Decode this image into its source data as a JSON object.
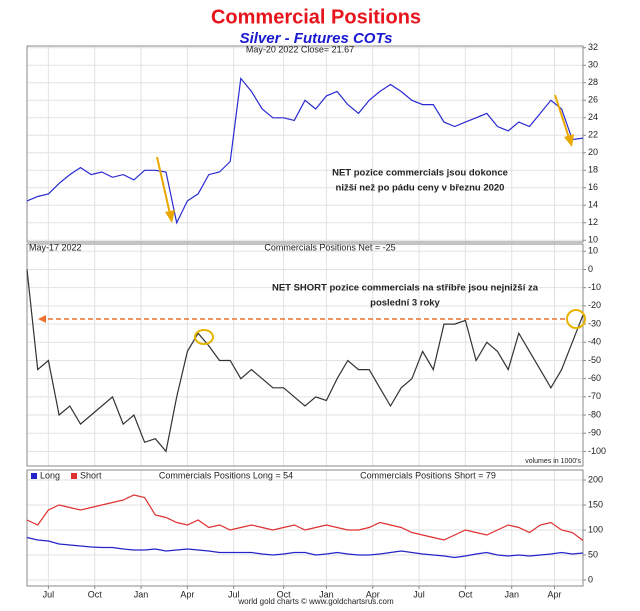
{
  "title": "Commercial Positions",
  "subtitle": "Silver - Futures COTs",
  "footer": "world gold charts © www.goldchartsrus.com",
  "chart_data": [
    {
      "type": "line",
      "header": "May-20 2022  Close= 21.67",
      "color": "#2a2ad2",
      "annotation": [
        "NET pozice commercials jsou dokonce",
        "nižší než po pádu ceny v březnu 2020"
      ],
      "x": [
        0,
        3,
        6,
        9,
        12,
        15,
        18,
        21,
        24,
        27,
        30,
        33,
        36,
        39,
        42,
        45,
        48,
        51,
        54,
        57,
        60,
        63,
        66,
        69,
        72,
        75,
        78,
        81,
        84,
        87,
        90,
        93,
        96,
        99,
        102,
        105,
        108,
        111,
        114,
        117,
        120,
        123,
        126,
        129,
        132,
        135,
        138,
        141,
        144,
        147,
        150,
        153,
        156
      ],
      "values": [
        14.5,
        15,
        15.3,
        16.5,
        17.5,
        18.3,
        17.5,
        17.8,
        17.2,
        17.5,
        16.9,
        18,
        18,
        17.8,
        12,
        14.5,
        15.3,
        17.5,
        17.8,
        19,
        28.5,
        27,
        25,
        24,
        24,
        23.7,
        26,
        25,
        26.5,
        27,
        25.5,
        24.5,
        26,
        27,
        27.8,
        27,
        26,
        25.5,
        25.5,
        23.5,
        23,
        23.5,
        24,
        24.5,
        23,
        22.5,
        23.5,
        23,
        24.5,
        26,
        25,
        21.5,
        21.67
      ],
      "xlim": [
        0,
        156
      ],
      "ylim": [
        9.8,
        32.2
      ],
      "yticks": [
        10,
        12,
        14,
        16,
        18,
        20,
        22,
        24,
        26,
        28,
        30,
        32
      ],
      "grid": true
    },
    {
      "type": "line",
      "date": "May-17 2022",
      "header": "Commercials Positions Net = -25",
      "color": "#333333",
      "annotation": [
        "NET SHORT pozice commercials na stříbře jsou nejnižší za",
        "poslední 3 roky"
      ],
      "note": "volumes in 1000's",
      "x": [
        0,
        3,
        6,
        9,
        12,
        15,
        18,
        21,
        24,
        27,
        30,
        33,
        36,
        39,
        42,
        45,
        48,
        51,
        54,
        57,
        60,
        63,
        66,
        69,
        72,
        75,
        78,
        81,
        84,
        87,
        90,
        93,
        96,
        99,
        102,
        105,
        108,
        111,
        114,
        117,
        120,
        123,
        126,
        129,
        132,
        135,
        138,
        141,
        144,
        147,
        150,
        153,
        156
      ],
      "values": [
        0,
        -55,
        -50,
        -80,
        -75,
        -85,
        -80,
        -75,
        -70,
        -85,
        -80,
        -95,
        -93,
        -100,
        -70,
        -45,
        -35,
        -42,
        -50,
        -50,
        -60,
        -55,
        -60,
        -65,
        -65,
        -70,
        -75,
        -70,
        -72,
        -60,
        -50,
        -55,
        -55,
        -65,
        -75,
        -65,
        -60,
        -45,
        -55,
        -30,
        -30,
        -28,
        -50,
        -40,
        -45,
        -55,
        -35,
        -45,
        -55,
        -65,
        -55,
        -40,
        -25
      ],
      "xlim": [
        0,
        156
      ],
      "ylim": [
        -108,
        14
      ],
      "yticks": [
        10,
        0,
        -10,
        -20,
        -30,
        -40,
        -50,
        -60,
        -70,
        -80,
        -90,
        -100
      ],
      "grid": true
    },
    {
      "type": "line",
      "header_long": "Commercials Positions Long = 54",
      "header_short": "Commercials Positions Short = 79",
      "x": [
        0,
        3,
        6,
        9,
        12,
        15,
        18,
        21,
        24,
        27,
        30,
        33,
        36,
        39,
        42,
        45,
        48,
        51,
        54,
        57,
        60,
        63,
        66,
        69,
        72,
        75,
        78,
        81,
        84,
        87,
        90,
        93,
        96,
        99,
        102,
        105,
        108,
        111,
        114,
        117,
        120,
        123,
        126,
        129,
        132,
        135,
        138,
        141,
        144,
        147,
        150,
        153,
        156
      ],
      "series": [
        {
          "name": "Long",
          "color": "#2424c8",
          "values": [
            85,
            80,
            78,
            72,
            70,
            68,
            66,
            65,
            65,
            62,
            60,
            60,
            62,
            58,
            60,
            62,
            60,
            58,
            55,
            55,
            55,
            55,
            52,
            50,
            52,
            55,
            55,
            50,
            52,
            55,
            52,
            50,
            50,
            52,
            55,
            58,
            55,
            52,
            50,
            48,
            45,
            48,
            52,
            55,
            50,
            48,
            50,
            48,
            50,
            52,
            55,
            52,
            54
          ]
        },
        {
          "name": "Short",
          "color": "#e03030",
          "values": [
            120,
            110,
            140,
            150,
            145,
            140,
            145,
            150,
            155,
            160,
            170,
            165,
            130,
            125,
            115,
            110,
            120,
            105,
            110,
            100,
            105,
            110,
            105,
            100,
            105,
            110,
            100,
            105,
            110,
            105,
            100,
            100,
            105,
            115,
            110,
            105,
            95,
            90,
            85,
            80,
            90,
            100,
            95,
            90,
            100,
            110,
            105,
            95,
            110,
            115,
            100,
            95,
            79
          ]
        }
      ],
      "xlim": [
        0,
        156
      ],
      "ylim": [
        -12,
        220
      ],
      "yticks": [
        0,
        50,
        100,
        150,
        200
      ],
      "grid": true,
      "xticks": [
        {
          "value": 6,
          "label": "Jul"
        },
        {
          "value": 19,
          "label": "Oct"
        },
        {
          "value": 32,
          "label": "Jan"
        },
        {
          "value": 45,
          "label": "Apr"
        },
        {
          "value": 58,
          "label": "Jul"
        },
        {
          "value": 72,
          "label": "Oct"
        },
        {
          "value": 84,
          "label": "Jan"
        },
        {
          "value": 97,
          "label": "Apr"
        },
        {
          "value": 110,
          "label": "Jul"
        },
        {
          "value": 123,
          "label": "Oct"
        },
        {
          "value": 136,
          "label": "Jan"
        },
        {
          "value": 148,
          "label": "Apr"
        }
      ]
    }
  ]
}
